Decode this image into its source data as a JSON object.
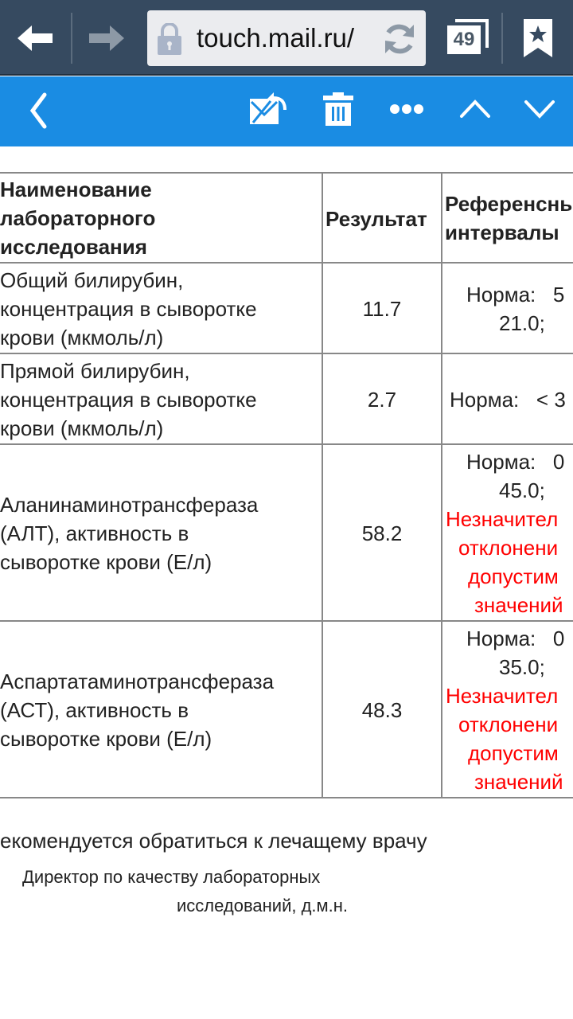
{
  "browser": {
    "url": "touch.mail.ru/",
    "tabs_count": "49",
    "colors": {
      "toolbar": "#364a60"
    }
  },
  "mail_toolbar": {
    "color": "#1a8ce3",
    "icons": [
      "back-chevron-icon",
      "move-mail-icon",
      "trash-icon",
      "more-icon",
      "chevron-up-icon",
      "chevron-down-icon"
    ]
  },
  "table": {
    "headers": [
      [
        "Наименование",
        "лабораторного",
        "исследования"
      ],
      [
        "Результат"
      ],
      [
        "Референсны",
        "интервалы"
      ]
    ],
    "rows": [
      {
        "name": [
          "Общий билирубин,",
          "концентрация в сыворотке",
          "крови (мкмоль/л)"
        ],
        "result": "11.7",
        "reference": [
          "Норма:   5",
          "21.0;"
        ],
        "warning": []
      },
      {
        "name": [
          "Прямой билирубин,",
          "концентрация в сыворотке",
          "крови (мкмоль/л)"
        ],
        "result": "2.7",
        "reference": [
          "Норма:   < 3"
        ],
        "warning": []
      },
      {
        "name": [
          "Аланинаминотрансфераза",
          "(АЛТ), активность в",
          "сыворотке крови (Е/л)"
        ],
        "result": "58.2",
        "reference": [
          "Норма:   0",
          "45.0;"
        ],
        "warning": [
          "Незначител",
          "отклонени",
          "допустим",
          "значений"
        ]
      },
      {
        "name": [
          "Аспартатаминотрансфераза",
          "(АСТ), активность в",
          "сыворотке крови (Е/л)"
        ],
        "result": "48.3",
        "reference": [
          "Норма:   0",
          "35.0;"
        ],
        "warning": [
          "Незначител",
          "отклонени",
          "допустим",
          "значений"
        ]
      }
    ]
  },
  "footer": {
    "recommendation": "екомендуется обратиться к лечащему врачу",
    "signature": [
      "Директор по качеству лабораторных",
      "исследований, д.м.н."
    ]
  }
}
